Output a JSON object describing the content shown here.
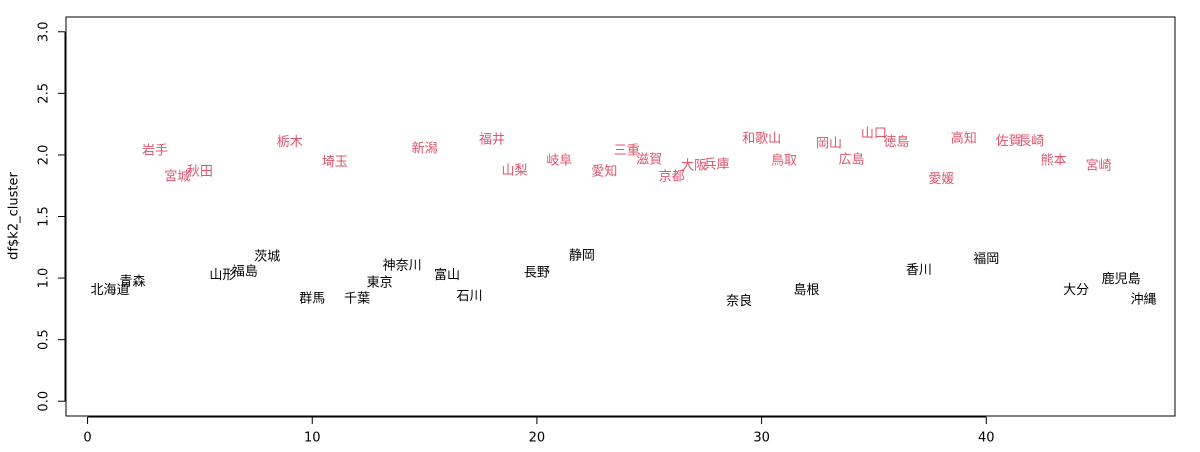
{
  "chart_data": {
    "type": "text-scatter",
    "ylabel": "df$k2_cluster",
    "xlim": [
      -0.96,
      48.4
    ],
    "ylim": [
      -0.12,
      3.12
    ],
    "xticks": [
      0,
      10,
      20,
      30,
      40
    ],
    "yticks": [
      {
        "value": 0,
        "label": "0.0"
      },
      0.5,
      {
        "value": 1,
        "label": "1.0"
      },
      1.5,
      {
        "value": 2,
        "label": "2.0"
      },
      2.5,
      {
        "value": 3,
        "label": "3.0"
      }
    ],
    "series": [
      {
        "color": "#000000",
        "labels": [
          "北海道",
          "青森",
          "山形",
          "福島",
          "茨城",
          "群馬",
          "千葉",
          "東京",
          "神奈川",
          "富山",
          "石川",
          "長野",
          "静岡",
          "奈良",
          "島根",
          "香川",
          "福岡",
          "大分",
          "鹿児島",
          "沖縄"
        ],
        "x": [
          1,
          2,
          6,
          7,
          8,
          10,
          12,
          13,
          14,
          16,
          17,
          20,
          22,
          29,
          32,
          37,
          40,
          44,
          46,
          47
        ],
        "values": [
          0.9,
          0.97,
          1.02,
          1.05,
          1.17,
          0.83,
          0.83,
          0.96,
          1.1,
          1.02,
          0.85,
          1.04,
          1.18,
          0.81,
          0.9,
          1.06,
          1.15,
          0.9,
          0.99,
          0.82
        ]
      },
      {
        "color": "#df536b",
        "labels": [
          "岩手",
          "宮城",
          "秋田",
          "栃木",
          "埼玉",
          "新潟",
          "福井",
          "山梨",
          "岐阜",
          "愛知",
          "三重",
          "滋賀",
          "京都",
          "大阪",
          "兵庫",
          "和歌山",
          "鳥取",
          "岡山",
          "広島",
          "山口",
          "徳島",
          "愛媛",
          "高知",
          "佐賀",
          "長崎",
          "熊本",
          "宮崎"
        ],
        "x": [
          3,
          4,
          5,
          9,
          11,
          15,
          18,
          19,
          21,
          23,
          24,
          25,
          26,
          27,
          28,
          30,
          31,
          33,
          34,
          35,
          36,
          38,
          39,
          41,
          42,
          43,
          45
        ],
        "values": [
          2.03,
          1.82,
          1.86,
          2.1,
          1.94,
          2.05,
          2.12,
          1.87,
          1.95,
          1.86,
          2.03,
          1.96,
          1.82,
          1.91,
          1.92,
          2.13,
          1.95,
          2.09,
          1.96,
          2.17,
          2.1,
          1.8,
          2.13,
          2.11,
          2.11,
          1.95,
          1.91
        ]
      }
    ]
  }
}
